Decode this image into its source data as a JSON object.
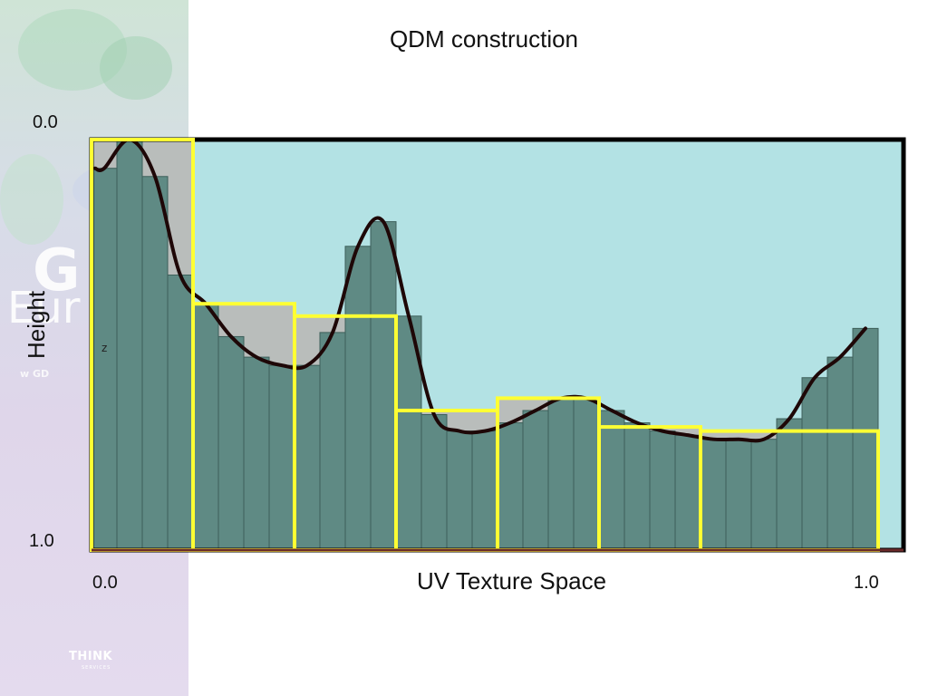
{
  "slide": {
    "title": "QDM construction",
    "y_axis_label": "Height",
    "x_axis_label": "UV Texture Space",
    "y_tick_top": "0.0",
    "y_tick_bottom": "1.0",
    "x_tick_left": "0.0",
    "x_tick_right": "1.0",
    "z_mark": "z"
  },
  "sidebar": {
    "brand_big": "G",
    "brand_mid": "Eur",
    "brand_small": "w GD",
    "logo_text": "THINK",
    "logo_subtext": "SERVICES"
  },
  "colors": {
    "bounding_box_fill": "#b3e2e4",
    "bounding_box_stroke": "#000000",
    "bar_fill": "#5f8a84",
    "bar_stroke": "#3d5f5a",
    "max_fill": "#b9bdbb",
    "max_stroke": "#ffff33",
    "curve_stroke": "#1e0707"
  },
  "diagram": {
    "y_range": [
      0,
      1
    ],
    "heights": [
      0.07,
      0.0,
      0.09,
      0.33,
      0.4,
      0.48,
      0.53,
      0.55,
      0.55,
      0.47,
      0.26,
      0.2,
      0.43,
      0.67,
      0.71,
      0.71,
      0.69,
      0.66,
      0.63,
      0.63,
      0.66,
      0.69,
      0.71,
      0.72,
      0.73,
      0.73,
      0.73,
      0.68,
      0.58,
      0.53,
      0.46
    ],
    "qdm_maxima": [
      0.0,
      0.4,
      0.43,
      0.66,
      0.63,
      0.7,
      0.71
    ],
    "qdm_cell_bars": [
      4,
      4,
      4,
      4,
      4,
      4,
      7
    ]
  }
}
